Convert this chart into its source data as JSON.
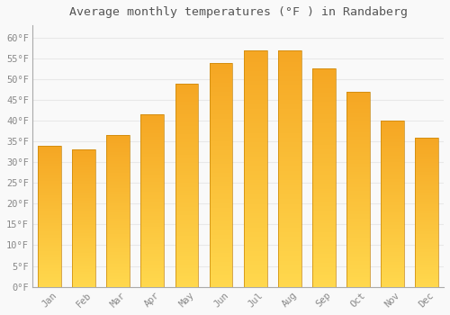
{
  "title": "Average monthly temperatures (°F ) in Randaberg",
  "months": [
    "Jan",
    "Feb",
    "Mar",
    "Apr",
    "May",
    "Jun",
    "Jul",
    "Aug",
    "Sep",
    "Oct",
    "Nov",
    "Dec"
  ],
  "values": [
    34.0,
    33.0,
    36.5,
    41.5,
    49.0,
    54.0,
    57.0,
    57.0,
    52.5,
    47.0,
    40.0,
    36.0
  ],
  "bar_color_top": "#F5A623",
  "bar_color_bottom": "#FFD84D",
  "bar_edge_color": "#C8860A",
  "ylim": [
    0,
    63
  ],
  "yticks": [
    0,
    5,
    10,
    15,
    20,
    25,
    30,
    35,
    40,
    45,
    50,
    55,
    60
  ],
  "bg_color": "#f9f9f9",
  "grid_color": "#e8e8e8",
  "title_fontsize": 9.5,
  "tick_fontsize": 7.5,
  "font_color": "#888888",
  "title_color": "#555555"
}
